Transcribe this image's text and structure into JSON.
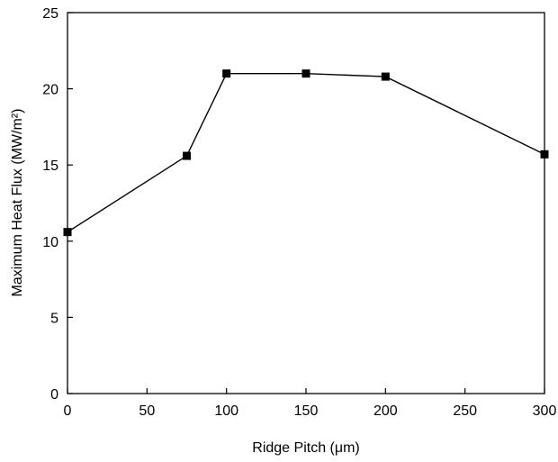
{
  "chart_data": {
    "type": "line",
    "x_label": "Ridge Pitch (μm)",
    "y_label": "Maximum Heat Flux (MW/m²)",
    "x": [
      0,
      75,
      100,
      150,
      200,
      300
    ],
    "series": [
      {
        "color": "#000000",
        "values": [
          10.6,
          15.6,
          21.0,
          21.0,
          20.8,
          15.7
        ]
      }
    ],
    "xlim": [
      0,
      300
    ],
    "xticks": [
      0,
      50,
      100,
      150,
      200,
      250,
      300
    ],
    "ylim": [
      0,
      25
    ],
    "yticks": [
      0,
      5,
      10,
      15,
      20,
      25
    ],
    "grid": false
  }
}
